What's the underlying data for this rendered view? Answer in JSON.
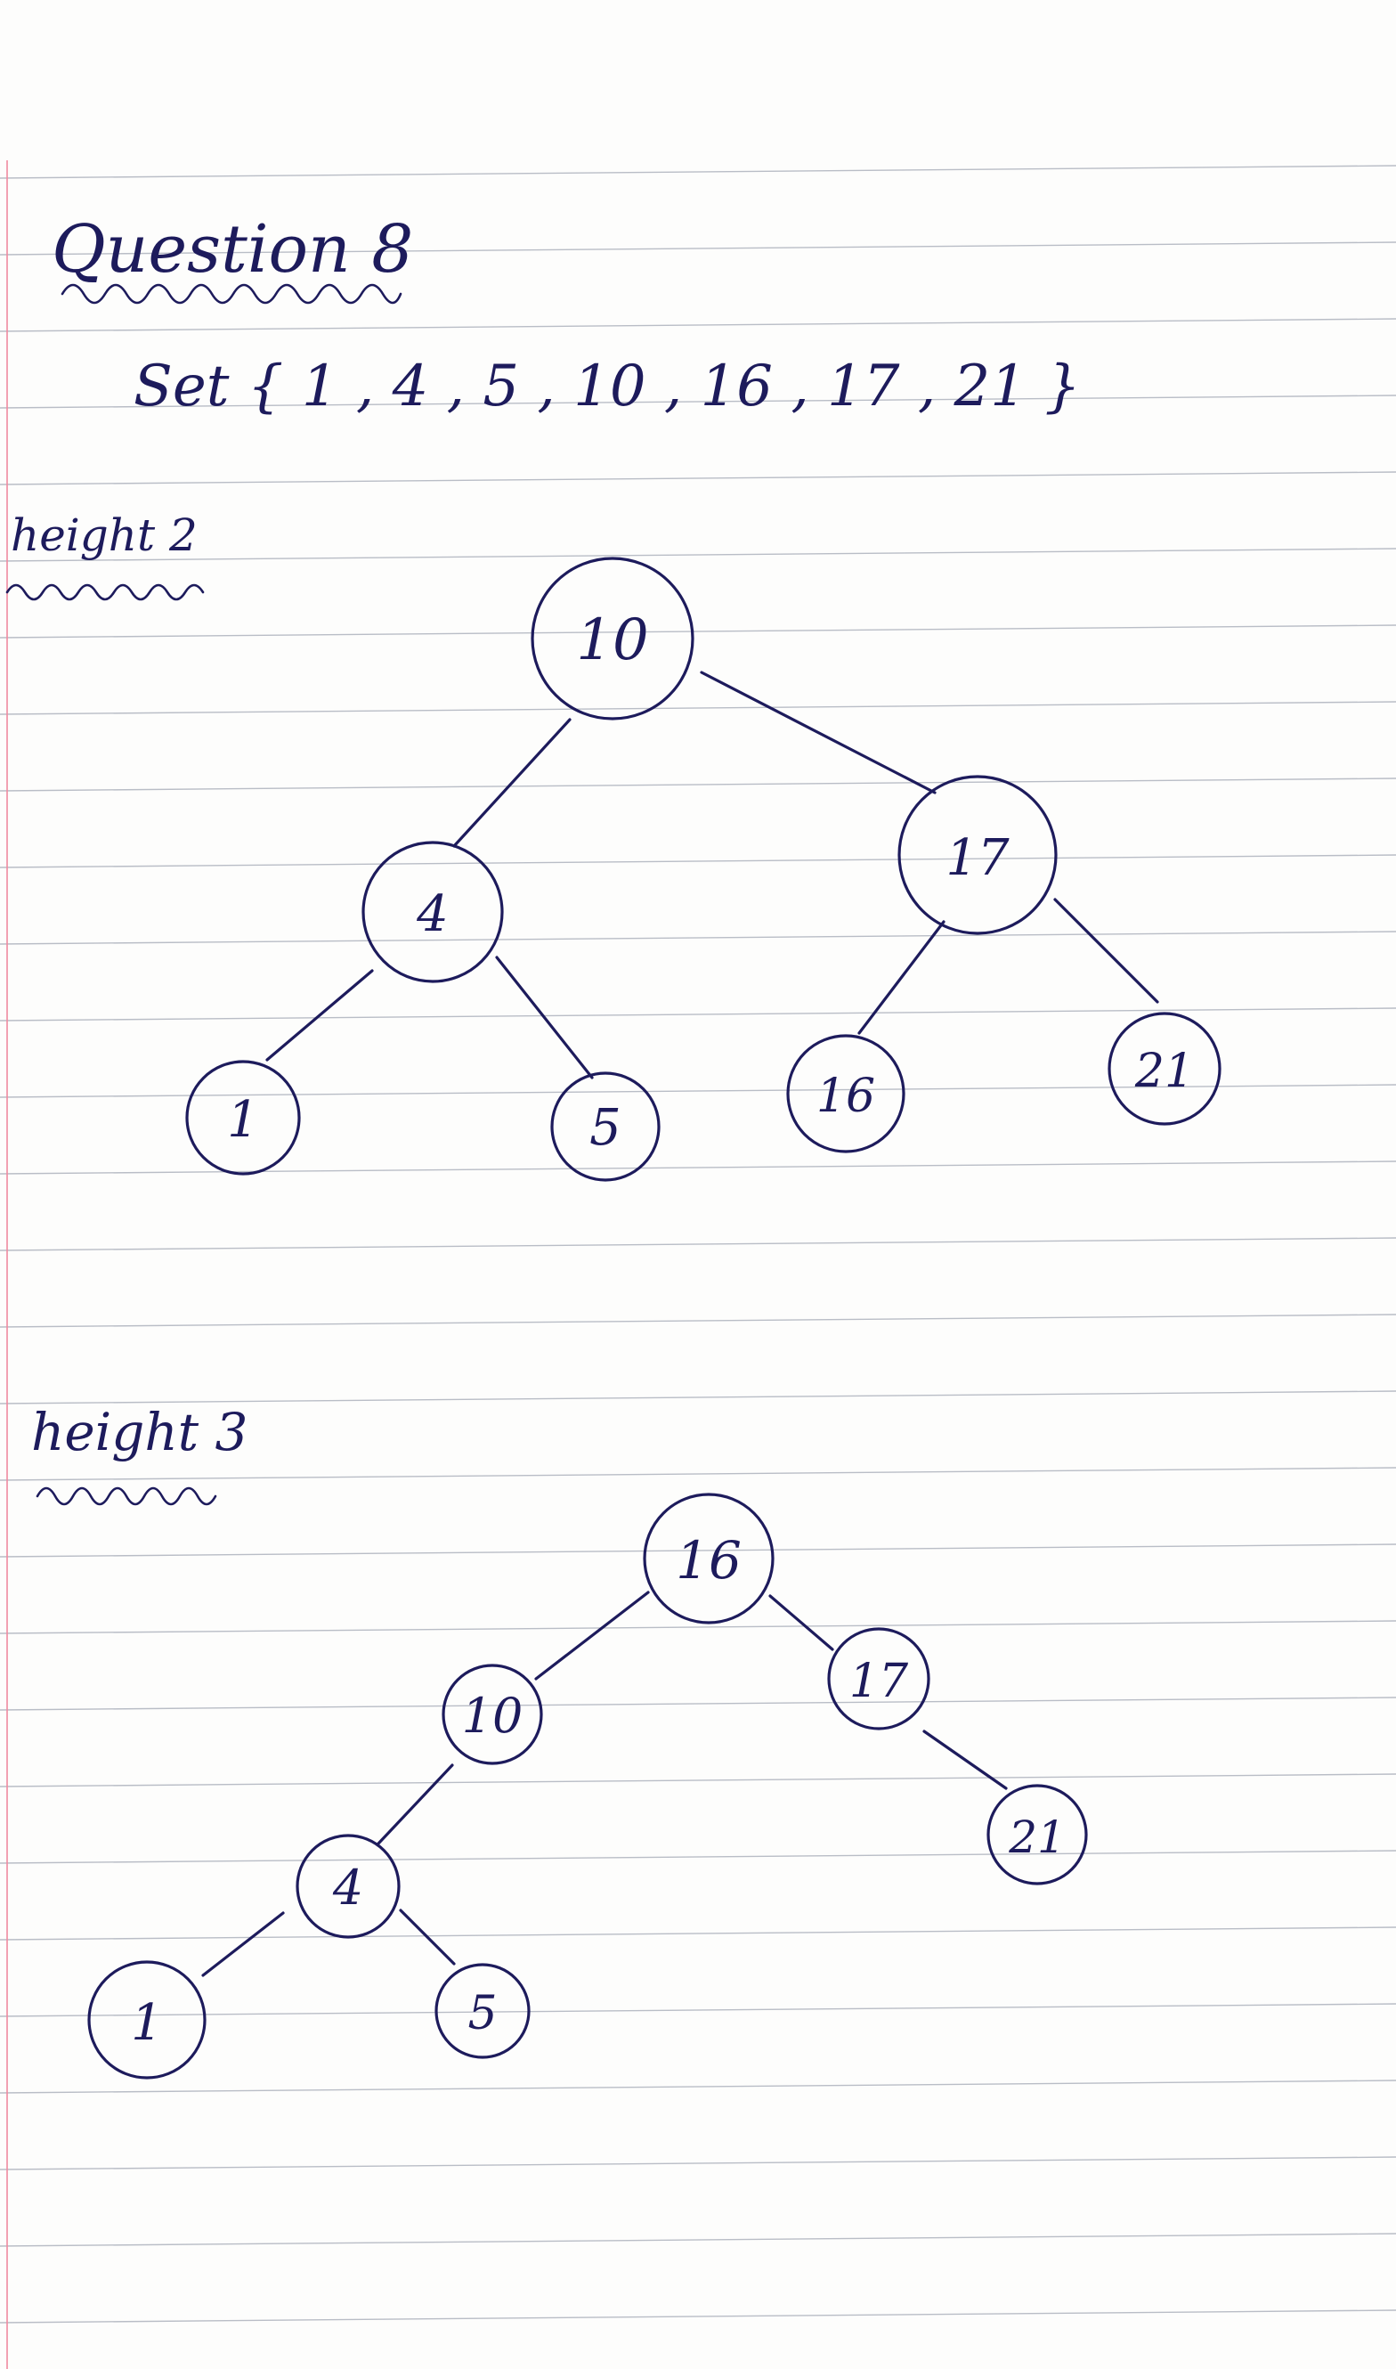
{
  "title": "Question 8",
  "set_line": "Set { 1 , 4 , 5 , 10 , 16 , 17 , 21 }",
  "trees": [
    {
      "label": "height 2",
      "nodes": [
        "10",
        "4",
        "17",
        "1",
        "5",
        "16",
        "21"
      ],
      "edges": [
        [
          "10",
          "4"
        ],
        [
          "10",
          "17"
        ],
        [
          "4",
          "1"
        ],
        [
          "4",
          "5"
        ],
        [
          "17",
          "16"
        ],
        [
          "17",
          "21"
        ]
      ]
    },
    {
      "label": "height 3",
      "nodes": [
        "16",
        "10",
        "17",
        "4",
        "21",
        "1",
        "5"
      ],
      "edges": [
        [
          "16",
          "10"
        ],
        [
          "16",
          "17"
        ],
        [
          "10",
          "4"
        ],
        [
          "17",
          "21"
        ],
        [
          "4",
          "1"
        ],
        [
          "4",
          "5"
        ]
      ]
    }
  ],
  "colors": {
    "ink": "#1d1b5c",
    "paper": "#fdfdfc",
    "rule": "#b9bdc6",
    "margin": "#f08aa0"
  }
}
